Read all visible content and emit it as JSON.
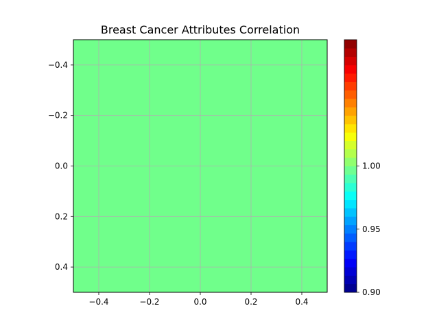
{
  "chart_data": {
    "type": "heatmap",
    "title": "Breast Cancer Attributes Correlation",
    "xlabel": "",
    "ylabel": "",
    "matrix": [
      [
        1.0
      ]
    ],
    "cell_color": "#70ff8b",
    "xlim": [
      -0.5,
      0.5
    ],
    "ylim": [
      0.5,
      -0.5
    ],
    "x_ticks": [
      -0.4,
      -0.2,
      0.0,
      0.2,
      0.4
    ],
    "y_ticks": [
      -0.4,
      -0.2,
      0.0,
      0.2,
      0.4
    ],
    "x_tick_labels": [
      "−0.4",
      "−0.2",
      "0.0",
      "0.2",
      "0.4"
    ],
    "y_tick_labels": [
      "−0.4",
      "−0.2",
      "0.0",
      "0.2",
      "0.4"
    ],
    "grid": true,
    "grid_color": "#b0b0b0",
    "colorbar": {
      "colormap": "jet",
      "range": [
        0.9,
        1.1
      ],
      "levels": 30,
      "ticks": [
        0.9,
        0.95,
        1.0
      ],
      "tick_labels": [
        "0.90",
        "0.95",
        "1.00"
      ]
    }
  }
}
